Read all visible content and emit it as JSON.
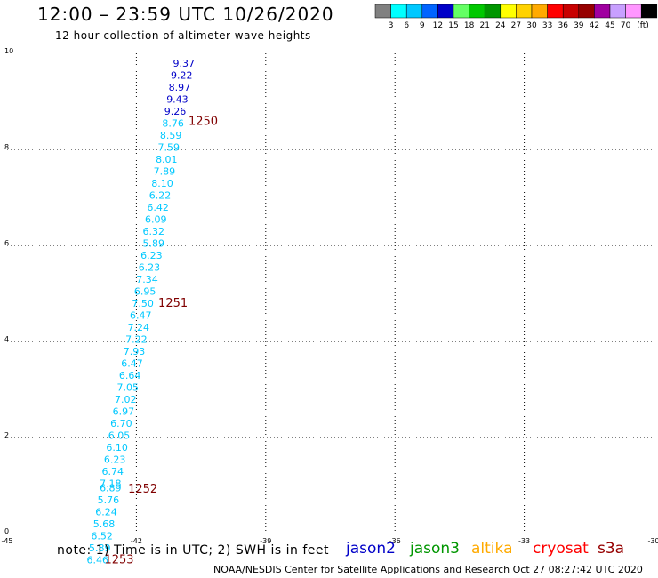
{
  "title": "12:00 – 23:59 UTC 10/26/2020",
  "subtitle": "12 hour collection of altimeter wave heights",
  "legend": {
    "unit": "(ft)",
    "bins": [
      {
        "label": "",
        "color": "#808080"
      },
      {
        "label": "3",
        "color": "#00ffff"
      },
      {
        "label": "6",
        "color": "#00c8ff"
      },
      {
        "label": "9",
        "color": "#0064ff"
      },
      {
        "label": "12",
        "color": "#0000c8"
      },
      {
        "label": "15",
        "color": "#64ff64"
      },
      {
        "label": "18",
        "color": "#00c800"
      },
      {
        "label": "21",
        "color": "#009600"
      },
      {
        "label": "24",
        "color": "#ffff00"
      },
      {
        "label": "27",
        "color": "#ffd200"
      },
      {
        "label": "30",
        "color": "#ffaa00"
      },
      {
        "label": "33",
        "color": "#ff0000"
      },
      {
        "label": "36",
        "color": "#c80000"
      },
      {
        "label": "39",
        "color": "#960000"
      },
      {
        "label": "42",
        "color": "#a000a0"
      },
      {
        "label": "45",
        "color": "#c8a0ff"
      },
      {
        "label": "70",
        "color": "#ff96ff"
      },
      {
        "label": "",
        "color": "#000000"
      }
    ]
  },
  "map": {
    "lon_range": [
      -45,
      -30
    ],
    "lat_range": [
      0,
      10
    ],
    "lon_ticks": [
      "-45",
      "-42",
      "-39",
      "-36",
      "-33",
      "-30"
    ],
    "lat_ticks": [
      "0",
      "2",
      "4",
      "6",
      "8",
      "10"
    ]
  },
  "chart_data": {
    "type": "scatter",
    "title": "12:00 – 23:59 UTC 10/26/2020",
    "subtitle": "12 hour collection of altimeter wave heights",
    "xlabel": "",
    "ylabel": "",
    "xlim": [
      -45,
      -30
    ],
    "ylim": [
      0,
      10
    ],
    "grid": true,
    "series": [
      {
        "name": "jason2",
        "color": "#0000c8",
        "points": [
          {
            "lon": -40.9,
            "lat": 9.8,
            "label": "9.37"
          },
          {
            "lon": -40.95,
            "lat": 9.55,
            "label": "9.22"
          },
          {
            "lon": -41.0,
            "lat": 9.3,
            "label": "8.97"
          },
          {
            "lon": -41.05,
            "lat": 9.05,
            "label": "9.43"
          },
          {
            "lon": -41.1,
            "lat": 8.8,
            "label": "9.26"
          }
        ]
      },
      {
        "name": "",
        "color": "#00c8ff",
        "points": [
          {
            "lon": -41.15,
            "lat": 8.55,
            "label": "8.76"
          },
          {
            "lon": -41.2,
            "lat": 8.3,
            "label": "8.59"
          },
          {
            "lon": -41.25,
            "lat": 8.05,
            "label": "7.59"
          },
          {
            "lon": -41.3,
            "lat": 7.8,
            "label": "8.01"
          },
          {
            "lon": -41.35,
            "lat": 7.55,
            "label": "7.89"
          },
          {
            "lon": -41.4,
            "lat": 7.3,
            "label": "8.10"
          },
          {
            "lon": -41.45,
            "lat": 7.05,
            "label": "6.22"
          },
          {
            "lon": -41.5,
            "lat": 6.8,
            "label": "6.42"
          },
          {
            "lon": -41.55,
            "lat": 6.55,
            "label": "6.09"
          },
          {
            "lon": -41.6,
            "lat": 6.3,
            "label": "6.32"
          },
          {
            "lon": -41.6,
            "lat": 6.05,
            "label": "5.89"
          },
          {
            "lon": -41.65,
            "lat": 5.8,
            "label": "6.23"
          },
          {
            "lon": -41.7,
            "lat": 5.55,
            "label": "6.23"
          },
          {
            "lon": -41.75,
            "lat": 5.3,
            "label": "7.34"
          },
          {
            "lon": -41.8,
            "lat": 5.05,
            "label": "6.95"
          },
          {
            "lon": -41.85,
            "lat": 4.8,
            "label": "7.50"
          },
          {
            "lon": -41.9,
            "lat": 4.55,
            "label": "6.47"
          },
          {
            "lon": -41.95,
            "lat": 4.3,
            "label": "7.24"
          },
          {
            "lon": -42.0,
            "lat": 4.05,
            "label": "7.22"
          },
          {
            "lon": -42.05,
            "lat": 3.8,
            "label": "7.93"
          },
          {
            "lon": -42.1,
            "lat": 3.55,
            "label": "6.47"
          },
          {
            "lon": -42.15,
            "lat": 3.3,
            "label": "6.64"
          },
          {
            "lon": -42.2,
            "lat": 3.05,
            "label": "7.05"
          },
          {
            "lon": -42.25,
            "lat": 2.8,
            "label": "7.02"
          },
          {
            "lon": -42.3,
            "lat": 2.55,
            "label": "6.97"
          },
          {
            "lon": -42.35,
            "lat": 2.3,
            "label": "6.70"
          },
          {
            "lon": -42.4,
            "lat": 2.05,
            "label": "6.05"
          },
          {
            "lon": -42.45,
            "lat": 1.8,
            "label": "6.10"
          },
          {
            "lon": -42.5,
            "lat": 1.55,
            "label": "6.23"
          },
          {
            "lon": -42.55,
            "lat": 1.3,
            "label": "6.74"
          },
          {
            "lon": -42.6,
            "lat": 1.05,
            "label": "7.18"
          },
          {
            "lon": -42.6,
            "lat": 0.95,
            "label": "6.89"
          },
          {
            "lon": -42.65,
            "lat": 0.7,
            "label": "5.76"
          },
          {
            "lon": -42.7,
            "lat": 0.45,
            "label": "6.24"
          },
          {
            "lon": -42.75,
            "lat": 0.2,
            "label": "5.68"
          },
          {
            "lon": -42.8,
            "lat": -0.05,
            "label": "6.52"
          },
          {
            "lon": -42.85,
            "lat": -0.3,
            "label": "5.89"
          },
          {
            "lon": -42.9,
            "lat": -0.55,
            "label": "6.46"
          }
        ]
      }
    ],
    "time_labels": [
      {
        "lon": -40.45,
        "lat": 8.58,
        "label": "1250"
      },
      {
        "lon": -41.15,
        "lat": 4.8,
        "label": "1251"
      },
      {
        "lon": -41.85,
        "lat": 0.93,
        "label": "1252"
      },
      {
        "lon": -42.4,
        "lat": -0.55,
        "label": "1253"
      }
    ]
  },
  "note": "note:  1) Time is in UTC;  2) SWH is in feet",
  "satellites": [
    {
      "name": "jason2",
      "color": "#0000c8"
    },
    {
      "name": "jason3",
      "color": "#009600"
    },
    {
      "name": "altika",
      "color": "#ffaa00"
    },
    {
      "name": "cryosat",
      "color": "#ff0000"
    },
    {
      "name": "s3a",
      "color": "#960000"
    }
  ],
  "credit": "NOAA/NESDIS Center for Satellite Applications and Research    Oct 27 08:27:42 UTC 2020"
}
